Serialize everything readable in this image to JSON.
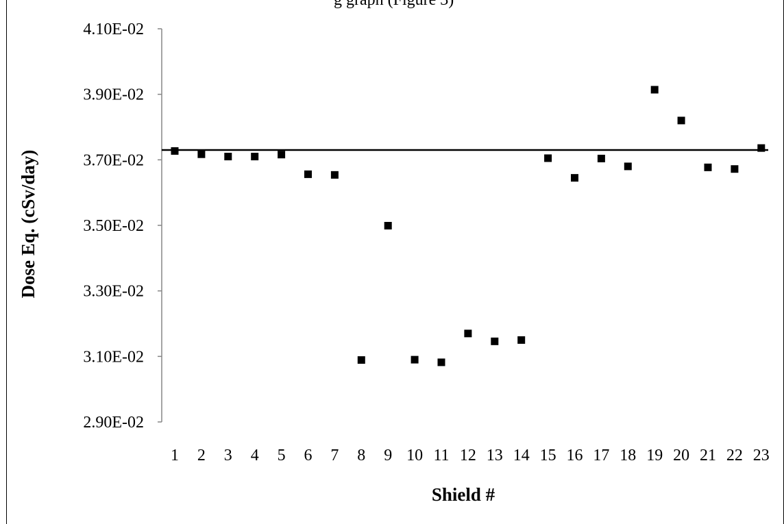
{
  "caption_fragment": "g graph (Figure 3)",
  "chart_data": {
    "type": "scatter",
    "title": "",
    "xlabel": "Shield #",
    "ylabel": "Dose Eq. (cSv/day)",
    "ylim": [
      0.029,
      0.041
    ],
    "y_ticks": [
      0.029,
      0.031,
      0.033,
      0.035,
      0.037,
      0.039,
      0.041
    ],
    "y_tick_labels": [
      "2.90E-02",
      "3.10E-02",
      "3.30E-02",
      "3.50E-02",
      "3.70E-02",
      "3.90E-02",
      "4.10E-02"
    ],
    "categories": [
      "1",
      "2",
      "3",
      "4",
      "5",
      "6",
      "7",
      "8",
      "9",
      "10",
      "11",
      "12",
      "13",
      "14",
      "15",
      "16",
      "17",
      "18",
      "19",
      "20",
      "21",
      "22",
      "23"
    ],
    "series": [
      {
        "marker": "square",
        "values": [
          0.03727,
          0.03717,
          0.0371,
          0.0371,
          0.03716,
          0.03656,
          0.03654,
          0.03089,
          0.03499,
          0.0309,
          0.03082,
          0.0317,
          0.03146,
          0.0315,
          0.03705,
          0.03645,
          0.03704,
          0.0368,
          0.03914,
          0.0382,
          0.03677,
          0.03672,
          0.03736
        ]
      }
    ],
    "reference_line": {
      "y": 0.0373
    },
    "grid": false,
    "legend": "none",
    "colors": {
      "marker": "#000000",
      "line": "#000000",
      "axis": "#868686",
      "frame": "#000000"
    }
  }
}
